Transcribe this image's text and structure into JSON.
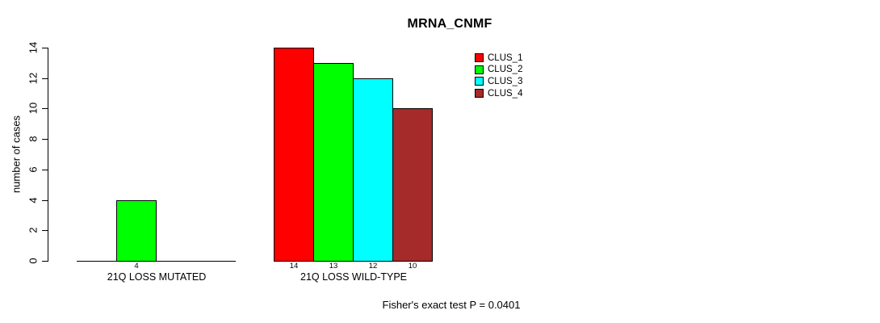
{
  "chart_data": {
    "type": "bar",
    "title": "MRNA_CNMF",
    "ylabel": "number of cases",
    "xlabel": "",
    "ylim": [
      0,
      14
    ],
    "yticks": [
      0,
      2,
      4,
      6,
      8,
      10,
      12,
      14
    ],
    "grid": false,
    "legend_position": "top-right",
    "categories": [
      "21Q LOSS MUTATED",
      "21Q LOSS WILD-TYPE"
    ],
    "series": [
      {
        "name": "CLUS_1",
        "color": "#ff0000",
        "values": [
          0,
          14
        ]
      },
      {
        "name": "CLUS_2",
        "color": "#00ff00",
        "values": [
          4,
          13
        ]
      },
      {
        "name": "CLUS_3",
        "color": "#00ffff",
        "values": [
          0,
          12
        ]
      },
      {
        "name": "CLUS_4",
        "color": "#a52a2a",
        "values": [
          0,
          10
        ]
      }
    ],
    "bar_value_labels": [
      [
        "",
        "4",
        "",
        ""
      ],
      [
        "14",
        "13",
        "12",
        "10"
      ]
    ],
    "annotation": "Fisher's exact test P = 0.0401"
  }
}
